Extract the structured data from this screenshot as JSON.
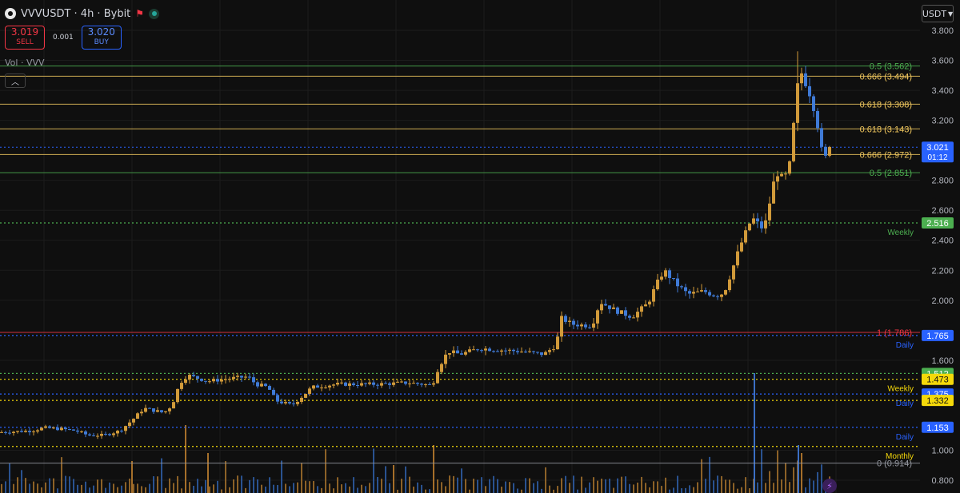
{
  "header": {
    "title": "VVVUSDT · 4h · Bybit",
    "sell_price": "3.019",
    "sell_label": "SELL",
    "buy_price": "3.020",
    "buy_label": "BUY",
    "quantity": "0.001",
    "volume_label": "Vol · VVV",
    "currency": "USDT",
    "icons": [
      "logo-icon",
      "flag-icon",
      "live-status-icon",
      "chevron-up-icon",
      "chevron-down-icon",
      "lightning-icon"
    ]
  },
  "chart_data": {
    "type": "candlestick",
    "symbol": "VVVUSDT",
    "interval": "4h",
    "exchange": "Bybit",
    "y_ticks": [
      "3.800",
      "3.600",
      "3.400",
      "3.200",
      "2.800",
      "2.600",
      "2.400",
      "2.200",
      "2.000",
      "1.600",
      "1.000",
      "0.800"
    ],
    "ylim": [
      0.74,
      3.88
    ],
    "last_price": {
      "value": 3.021,
      "label": "3.021",
      "countdown": "01:12",
      "color": "#2962ff"
    },
    "fib_levels": [
      {
        "ratio": "0.5",
        "value": 3.562,
        "label": "0.5 (3.562)",
        "color": "#4caf50"
      },
      {
        "ratio": "0.666",
        "value": 3.494,
        "label": "0.666 (3.494)",
        "color": "#f0c75e"
      },
      {
        "ratio": "0.618",
        "value": 3.308,
        "label": "0.618 (3.308)",
        "color": "#f0c75e"
      },
      {
        "ratio": "0.618",
        "value": 3.143,
        "label": "0.618 (3.143)",
        "color": "#f0c75e"
      },
      {
        "ratio": "0.666",
        "value": 2.972,
        "label": "0.666 (2.972)",
        "color": "#f0c75e"
      },
      {
        "ratio": "0.5",
        "value": 2.851,
        "label": "0.5 (2.851)",
        "color": "#4caf50"
      },
      {
        "ratio": "1",
        "value": 1.786,
        "label": "1 (1.786)",
        "color": "#f23645"
      },
      {
        "ratio": "0",
        "value": 0.914,
        "label": "0 (0.914)",
        "color": "#9598a1"
      }
    ],
    "key_levels": [
      {
        "value": 2.516,
        "label": "2.516",
        "tag": "Weekly",
        "color": "#4caf50"
      },
      {
        "value": 1.765,
        "label": "1.765",
        "tag": "Daily",
        "color": "#2962ff"
      },
      {
        "value": 1.512,
        "label": "1.512",
        "tag": "",
        "color": "#4caf50"
      },
      {
        "value": 1.473,
        "label": "1.473",
        "tag": "Weekly",
        "color": "#f5d90a"
      },
      {
        "value": 1.375,
        "label": "1.375",
        "tag": "Daily",
        "color": "#2962ff"
      },
      {
        "value": 1.332,
        "label": "1.332",
        "tag": "",
        "color": "#f5d90a"
      },
      {
        "value": 1.153,
        "label": "1.153",
        "tag": "Daily",
        "color": "#2962ff"
      },
      {
        "value": 1.025,
        "label": "",
        "tag": "Monthly",
        "color": "#f5d90a"
      }
    ],
    "anchors": [
      [
        0,
        1.12
      ],
      [
        40,
        1.13
      ],
      [
        55,
        1.15
      ],
      [
        80,
        1.14
      ],
      [
        95,
        1.13
      ],
      [
        110,
        1.1
      ],
      [
        130,
        1.1
      ],
      [
        150,
        1.13
      ],
      [
        165,
        1.2
      ],
      [
        180,
        1.28
      ],
      [
        205,
        1.25
      ],
      [
        215,
        1.3
      ],
      [
        225,
        1.45
      ],
      [
        235,
        1.5
      ],
      [
        260,
        1.46
      ],
      [
        290,
        1.48
      ],
      [
        310,
        1.49
      ],
      [
        320,
        1.44
      ],
      [
        335,
        1.42
      ],
      [
        345,
        1.33
      ],
      [
        365,
        1.3
      ],
      [
        378,
        1.36
      ],
      [
        390,
        1.42
      ],
      [
        420,
        1.44
      ],
      [
        440,
        1.44
      ],
      [
        470,
        1.44
      ],
      [
        510,
        1.45
      ],
      [
        530,
        1.44
      ],
      [
        540,
        1.43
      ],
      [
        548,
        1.55
      ],
      [
        560,
        1.66
      ],
      [
        575,
        1.64
      ],
      [
        600,
        1.68
      ],
      [
        620,
        1.67
      ],
      [
        650,
        1.66
      ],
      [
        680,
        1.64
      ],
      [
        695,
        1.7
      ],
      [
        702,
        1.88
      ],
      [
        715,
        1.84
      ],
      [
        740,
        1.83
      ],
      [
        750,
        1.99
      ],
      [
        770,
        1.93
      ],
      [
        790,
        1.89
      ],
      [
        810,
        1.98
      ],
      [
        820,
        2.1
      ],
      [
        830,
        2.2
      ],
      [
        845,
        2.11
      ],
      [
        860,
        2.04
      ],
      [
        880,
        2.06
      ],
      [
        895,
        2.03
      ],
      [
        905,
        2.05
      ],
      [
        915,
        2.2
      ],
      [
        925,
        2.36
      ],
      [
        940,
        2.55
      ],
      [
        955,
        2.47
      ],
      [
        962,
        2.65
      ],
      [
        970,
        2.86
      ],
      [
        980,
        2.8
      ],
      [
        988,
        2.92
      ],
      [
        995,
        3.35
      ],
      [
        1000,
        3.54
      ],
      [
        1008,
        3.44
      ],
      [
        1015,
        3.34
      ],
      [
        1022,
        3.17
      ],
      [
        1030,
        2.9
      ],
      [
        1036,
        3.05
      ],
      [
        1040,
        3.02
      ]
    ],
    "volume_bars_note": "volume histogram at bottom of chart"
  }
}
